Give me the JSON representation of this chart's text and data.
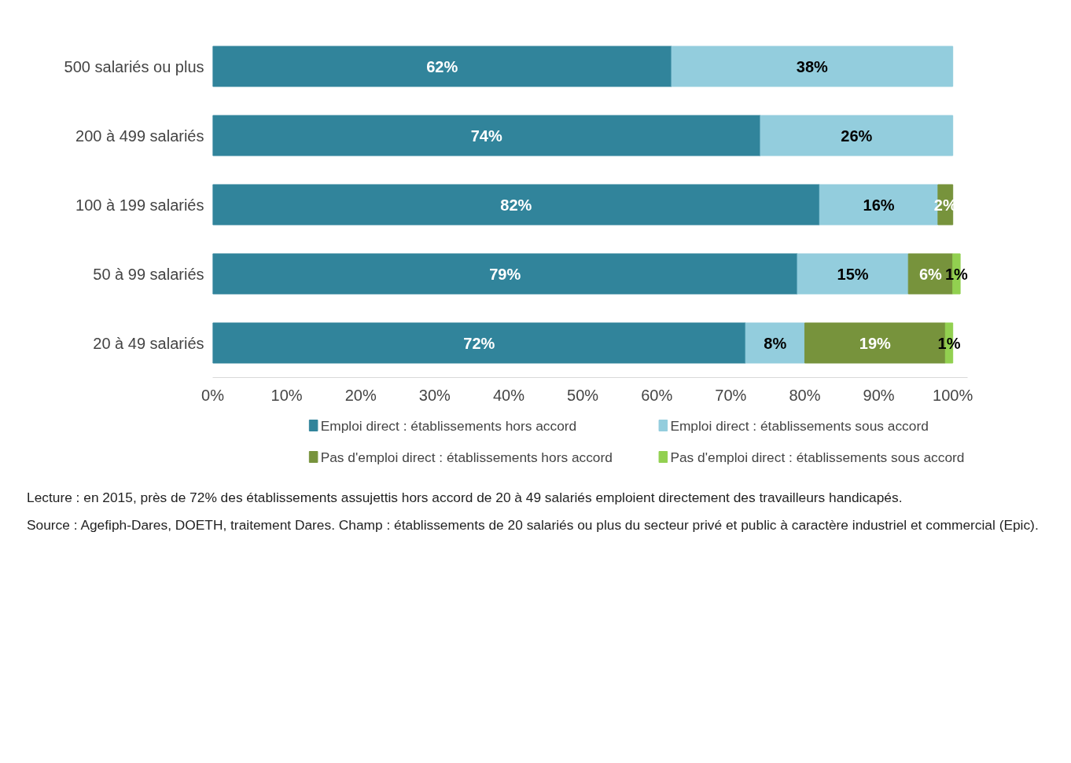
{
  "chart_data": {
    "type": "bar",
    "orientation": "horizontal",
    "stacked": true,
    "categories": [
      "500 salariés ou plus",
      "200 à 499 salariés",
      "100 à 199 salariés",
      "50 à 99 salariés",
      "20 à 49 salariés"
    ],
    "series": [
      {
        "name": "Emploi direct : établissements hors accord",
        "color": "#31849b",
        "values": [
          62,
          74,
          82,
          79,
          72
        ],
        "value_labels": [
          "62%",
          "74%",
          "82%",
          "79%",
          "72%"
        ]
      },
      {
        "name": "Emploi direct : établissements sous accord",
        "color": "#93cddd",
        "values": [
          38,
          26,
          16,
          15,
          8
        ],
        "value_labels": [
          "38%",
          "26%",
          "16%",
          "15%",
          "8%"
        ]
      },
      {
        "name": "Pas d'emploi direct : établissements hors accord",
        "color": "#77933c",
        "values": [
          null,
          null,
          2,
          6,
          19
        ],
        "value_labels": [
          null,
          null,
          "2%",
          "6%",
          "19%"
        ]
      },
      {
        "name": "Pas d'emploi direct : établissements sous accord",
        "color": "#92d050",
        "values": [
          null,
          null,
          null,
          1,
          1
        ],
        "value_labels": [
          null,
          null,
          null,
          "1%",
          "1%"
        ]
      }
    ],
    "xlim": [
      0,
      102
    ],
    "xticks": [
      {
        "value": 0,
        "label": "0%"
      },
      {
        "value": 10,
        "label": "10%"
      },
      {
        "value": 20,
        "label": "20%"
      },
      {
        "value": 30,
        "label": "30%"
      },
      {
        "value": 40,
        "label": "40%"
      },
      {
        "value": 50,
        "label": "50%"
      },
      {
        "value": 60,
        "label": "60%"
      },
      {
        "value": 70,
        "label": "70%"
      },
      {
        "value": 80,
        "label": "80%"
      },
      {
        "value": 90,
        "label": "90%"
      },
      {
        "value": 100,
        "label": "100%"
      }
    ],
    "grid": false,
    "legend": "bottom",
    "annotations": [
      "Lecture : en 2015, près de 72% des établissements assujettis hors accord de 20 à 49 salariés emploient directement des travailleurs handicapés.",
      "Source : Agefiph-Dares, DOETH, traitement Dares. Champ : établissements de 20 salariés ou plus du secteur privé et public à caractère industriel et commercial (Epic)."
    ]
  }
}
